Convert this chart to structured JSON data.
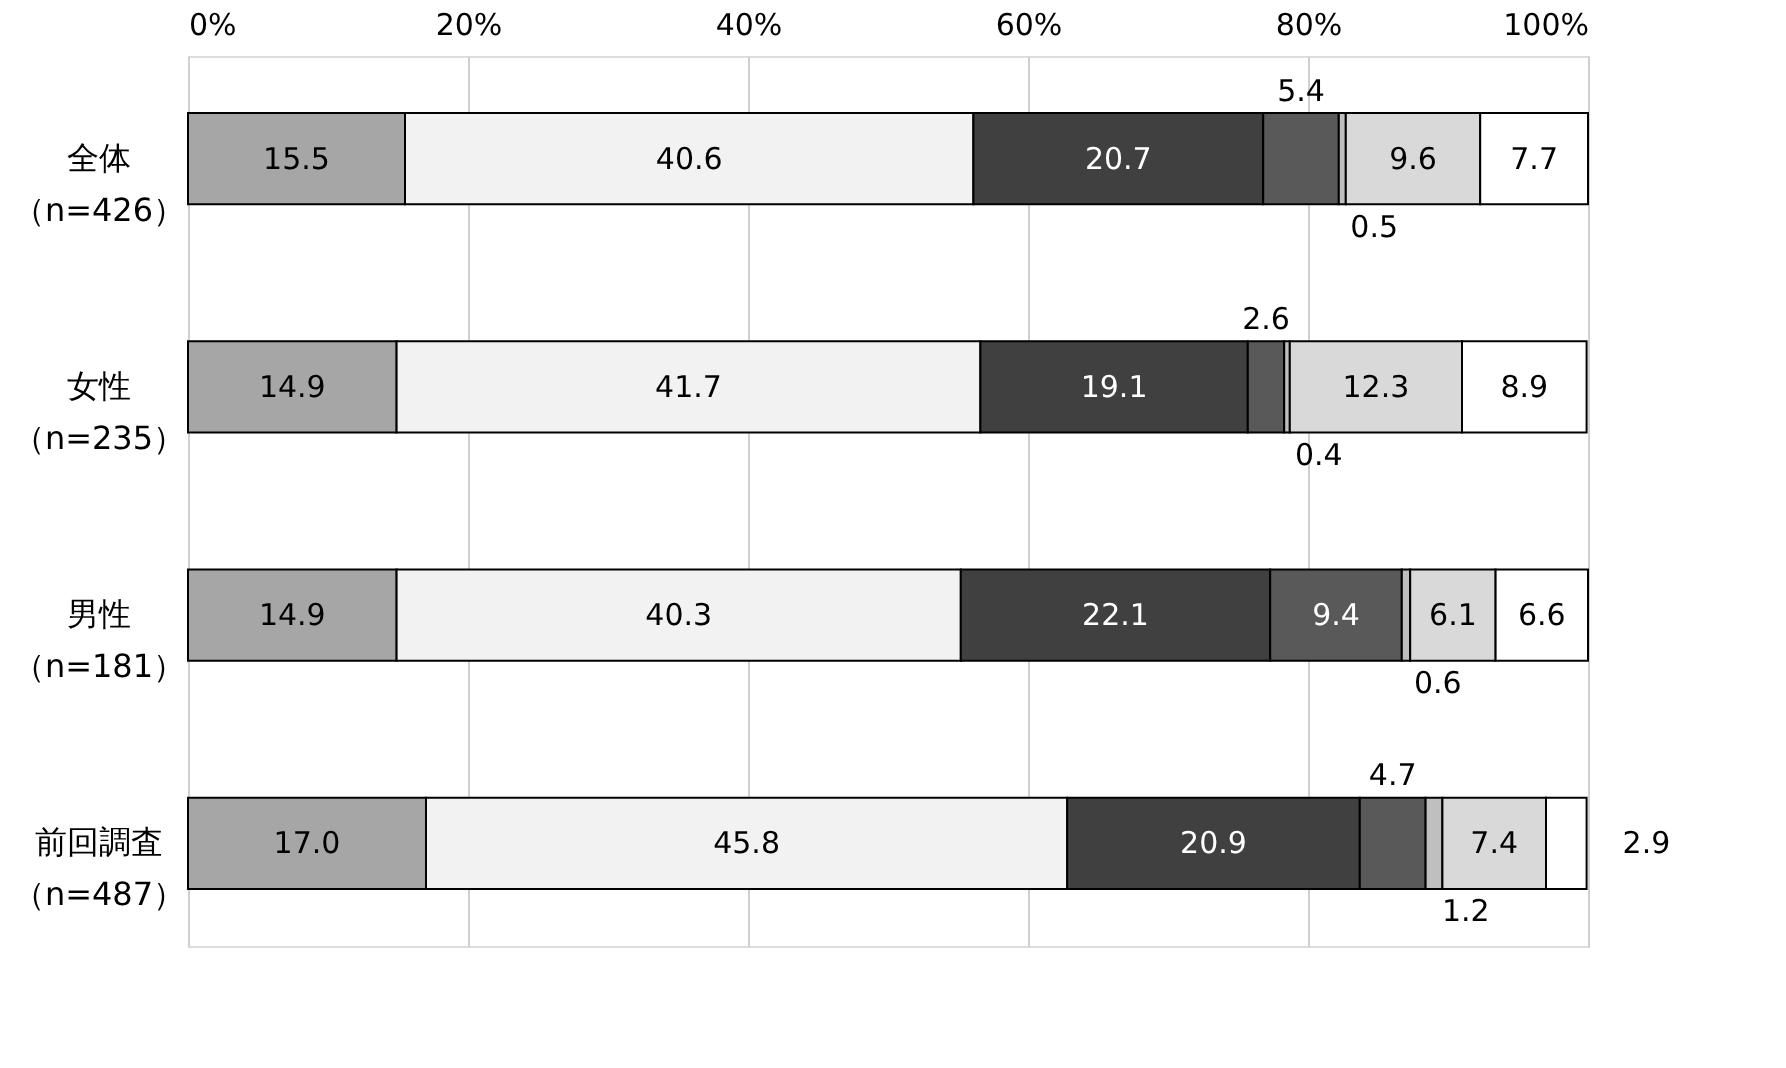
{
  "chart_data": {
    "type": "bar",
    "orientation": "horizontal",
    "stacked": true,
    "categories": [
      "全体（n=426）",
      "女性（n=235）",
      "男性（n=181）",
      "前回調査（n=487）"
    ],
    "series": [
      {
        "color": "#a6a6a6",
        "values": [
          15.5,
          14.9,
          14.9,
          17.0
        ],
        "value_labels": [
          "15.5",
          "14.9",
          "14.9",
          "17.0"
        ]
      },
      {
        "color": "#f2f2f2",
        "values": [
          40.6,
          41.7,
          40.3,
          45.8
        ],
        "value_labels": [
          "40.6",
          "41.7",
          "40.3",
          "45.8"
        ]
      },
      {
        "color": "#404040",
        "values": [
          20.7,
          19.1,
          22.1,
          20.9
        ],
        "value_labels": [
          "20.7",
          "19.1",
          "22.1",
          "20.9"
        ]
      },
      {
        "color": "#595959",
        "values": [
          5.4,
          2.6,
          9.4,
          4.7
        ],
        "value_labels": [
          "5.4",
          "2.6",
          "9.4",
          "4.7"
        ]
      },
      {
        "color": "#bfbfbf",
        "values": [
          0.5,
          0.4,
          0.6,
          1.2
        ],
        "value_labels": [
          "0.5",
          "0.4",
          "0.6",
          "1.2"
        ]
      },
      {
        "color": "#d9d9d9",
        "values": [
          9.6,
          12.3,
          6.1,
          7.4
        ],
        "value_labels": [
          "9.6",
          "12.3",
          "6.1",
          "7.4"
        ]
      },
      {
        "color": "#ffffff",
        "values": [
          7.7,
          8.9,
          6.6,
          2.9
        ],
        "value_labels": [
          "7.7",
          "8.9",
          "6.6",
          "2.9"
        ]
      }
    ],
    "xlim": [
      0,
      100
    ],
    "xticks": [
      {
        "value": 0,
        "label": "0%"
      },
      {
        "value": 20,
        "label": "20%"
      },
      {
        "value": 40,
        "label": "40%"
      },
      {
        "value": 60,
        "label": "60%"
      },
      {
        "value": 80,
        "label": "80%"
      },
      {
        "value": 100,
        "label": "100%"
      }
    ],
    "grid": "x",
    "legend": false
  }
}
